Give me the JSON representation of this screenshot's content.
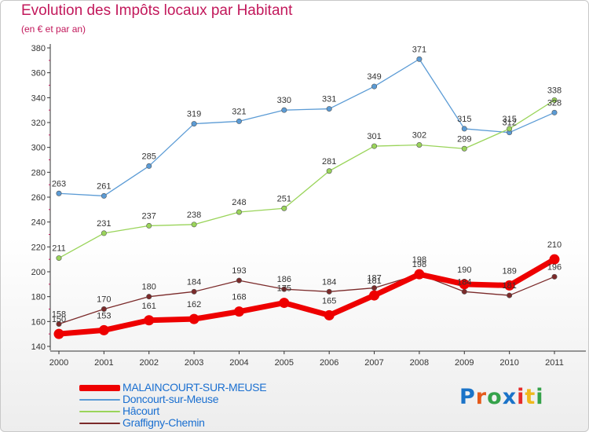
{
  "title": "Evolution des Impôts locaux par Habitant",
  "subtitle": "(en € et par an)",
  "logo": {
    "text": "Proxiti",
    "colors": [
      "#1a73c8",
      "#e55a1a",
      "#35a24a",
      "#1a73c8",
      "#e52a2a",
      "#f0b81c",
      "#35a24a"
    ]
  },
  "chart_data": {
    "type": "line",
    "x": [
      "2000",
      "2001",
      "2002",
      "2003",
      "2004",
      "2005",
      "2006",
      "2007",
      "2008",
      "2009",
      "2010",
      "2011"
    ],
    "ylim": [
      140,
      380
    ],
    "yticks": [
      140,
      160,
      180,
      200,
      220,
      240,
      260,
      280,
      300,
      320,
      340,
      360,
      380
    ],
    "grid": false,
    "legend_position": "bottom-left",
    "series": [
      {
        "name": "Doncourt-sur-Meuse",
        "color": "#5b9bd5",
        "values": [
          263,
          261,
          285,
          319,
          321,
          330,
          331,
          349,
          371,
          315,
          312,
          328
        ]
      },
      {
        "name": "Hâcourt",
        "color": "#9ad45a",
        "values": [
          211,
          231,
          237,
          238,
          248,
          251,
          281,
          301,
          302,
          299,
          315,
          338
        ]
      },
      {
        "name": "Graffigny-Chemin",
        "color": "#7b2a2a",
        "values": [
          158,
          170,
          180,
          184,
          193,
          186,
          184,
          187,
          198,
          184,
          181,
          196
        ]
      },
      {
        "name": "MALAINCOURT-SUR-MEUSE",
        "color": "#ee0000",
        "values": [
          150,
          153,
          161,
          162,
          168,
          175,
          165,
          181,
          198,
          190,
          189,
          210
        ]
      }
    ],
    "legend_order": [
      "MALAINCOURT-SUR-MEUSE",
      "Doncourt-sur-Meuse",
      "Hâcourt",
      "Graffigny-Chemin"
    ]
  }
}
